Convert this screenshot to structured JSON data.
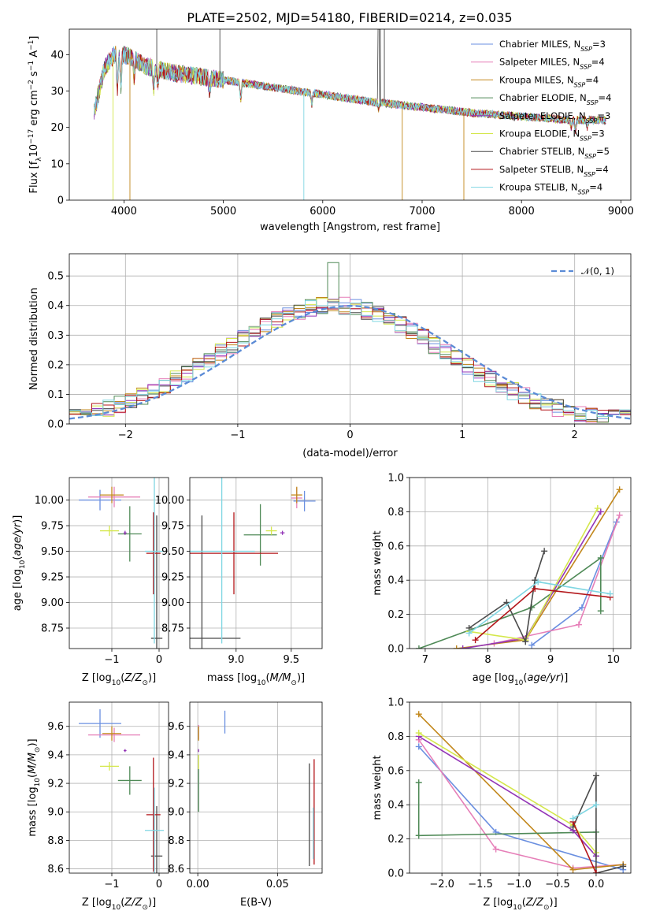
{
  "figure_title": "PLATE=2502, MJD=54180, FIBERID=0214, z=0.035",
  "colors": {
    "Chabrier MILES": "#6a8fe0",
    "Salpeter MILES": "#e67fb8",
    "Kroupa MILES": "#c2871b",
    "Chabrier ELODIE": "#4f8a57",
    "Salpeter ELODIE": "#9334b7",
    "Kroupa ELODIE": "#d4e74b",
    "Chabrier STELIB": "#4a4a4a",
    "Salpeter STELIB": "#b3161a",
    "Kroupa STELIB": "#7fd6e2"
  },
  "chart_data": [
    {
      "id": "spectrum",
      "type": "line",
      "xlabel": "wavelength [Angstrom, rest frame]",
      "ylabel": "Flux [f_λ 10^-17 erg cm^-2 s^-1 A^-1]",
      "xlim": [
        3450,
        9100
      ],
      "ylim": [
        0,
        47
      ],
      "xticks": [
        4000,
        5000,
        6000,
        7000,
        8000,
        9000
      ],
      "yticks": [
        0,
        10,
        20,
        30,
        40
      ],
      "legend_position": "top-right",
      "legend": [
        {
          "name": "Chabrier MILES",
          "nssp": "3"
        },
        {
          "name": "Salpeter MILES",
          "nssp": "4"
        },
        {
          "name": "Kroupa MILES",
          "nssp": "4"
        },
        {
          "name": "Chabrier ELODIE",
          "nssp": "4"
        },
        {
          "name": "Salpeter ELODIE",
          "nssp": "3"
        },
        {
          "name": "Kroupa ELODIE",
          "nssp": "3"
        },
        {
          "name": "Chabrier STELIB",
          "nssp": "5"
        },
        {
          "name": "Salpeter STELIB",
          "nssp": "4"
        },
        {
          "name": "Kroupa STELIB",
          "nssp": "4"
        }
      ],
      "continuum": {
        "x": [
          3700,
          3800,
          3900,
          4000,
          4100,
          4200,
          4500,
          5000,
          5500,
          6000,
          6500,
          7000,
          7500,
          8000,
          8500,
          8850
        ],
        "y": [
          24,
          36,
          40,
          40,
          39,
          37,
          35,
          33,
          31,
          29,
          27,
          25.5,
          24,
          23,
          22,
          22
        ]
      }
    },
    {
      "id": "residuals",
      "type": "histogram",
      "xlabel": "(data-model)/error",
      "ylabel": "Normed distribution",
      "xlim": [
        -2.5,
        2.5
      ],
      "ylim": [
        0,
        0.575
      ],
      "xticks": [
        -2,
        -1,
        0,
        1,
        2
      ],
      "yticks": [
        0.0,
        0.1,
        0.2,
        0.3,
        0.4,
        0.5
      ],
      "legend": "𝒩(0, 1)",
      "legend_position": "top-right",
      "bin_width": 0.1
    },
    {
      "id": "age_vs_Z",
      "type": "errorbar",
      "xlabel": "Z [log10(Z/Z⊙)]",
      "ylabel": "age [log10(age/yr)]",
      "xlim": [
        -1.9,
        0.2
      ],
      "ylim": [
        8.55,
        10.22
      ],
      "xticks": [
        -1,
        0
      ],
      "yticks": [
        8.75,
        9.0,
        9.25,
        9.5,
        9.75,
        10.0
      ],
      "points": [
        {
          "series": "Chabrier MILES",
          "x": -1.25,
          "y": 10.0,
          "xerr": 0.45,
          "yerr": 0.1
        },
        {
          "series": "Salpeter MILES",
          "x": -0.95,
          "y": 10.03,
          "xerr": 0.55,
          "yerr": 0.1
        },
        {
          "series": "Kroupa MILES",
          "x": -1.0,
          "y": 10.05,
          "xerr": 0.25,
          "yerr": 0.08
        },
        {
          "series": "Chabrier ELODIE",
          "x": -0.62,
          "y": 9.67,
          "xerr": 0.25,
          "yerr": 0.27
        },
        {
          "series": "Salpeter ELODIE",
          "x": -0.72,
          "y": 9.68,
          "xerr": 0.03,
          "yerr": 0.02
        },
        {
          "series": "Kroupa ELODIE",
          "x": -1.05,
          "y": 9.7,
          "xerr": 0.2,
          "yerr": 0.05
        },
        {
          "series": "Chabrier STELIB",
          "x": -0.05,
          "y": 8.65,
          "xerr": 0.12,
          "yerr": 1.2
        },
        {
          "series": "Salpeter STELIB",
          "x": -0.12,
          "y": 9.48,
          "xerr": 0.15,
          "yerr": 0.4
        },
        {
          "series": "Kroupa STELIB",
          "x": -0.1,
          "y": 9.5,
          "xerr": 0.2,
          "yerr": 0.9
        }
      ]
    },
    {
      "id": "age_vs_mass",
      "type": "errorbar",
      "xlabel": "mass [log10(M/M⊙)]",
      "ylabel": "",
      "xlim": [
        8.58,
        9.78
      ],
      "ylim": [
        8.55,
        10.22
      ],
      "xticks": [
        9.0,
        9.5
      ],
      "yticks": [
        8.75,
        9.0,
        9.25,
        9.5,
        9.75,
        10.0
      ],
      "points": [
        {
          "series": "Chabrier MILES",
          "x": 9.62,
          "y": 9.99,
          "xerr": 0.1,
          "yerr": 0.1
        },
        {
          "series": "Salpeter MILES",
          "x": 9.55,
          "y": 10.02,
          "xerr": 0.05,
          "yerr": 0.1
        },
        {
          "series": "Kroupa MILES",
          "x": 9.55,
          "y": 10.05,
          "xerr": 0.05,
          "yerr": 0.08
        },
        {
          "series": "Chabrier ELODIE",
          "x": 9.22,
          "y": 9.66,
          "xerr": 0.15,
          "yerr": 0.3
        },
        {
          "series": "Salpeter ELODIE",
          "x": 9.42,
          "y": 9.68,
          "xerr": 0.02,
          "yerr": 0.02
        },
        {
          "series": "Kroupa ELODIE",
          "x": 9.32,
          "y": 9.7,
          "xerr": 0.05,
          "yerr": 0.04
        },
        {
          "series": "Chabrier STELIB",
          "x": 8.69,
          "y": 8.65,
          "xerr": 0.35,
          "yerr": 1.2
        },
        {
          "series": "Salpeter STELIB",
          "x": 8.98,
          "y": 9.48,
          "xerr": 0.4,
          "yerr": 0.4
        },
        {
          "series": "Kroupa STELIB",
          "x": 8.87,
          "y": 9.5,
          "xerr": 0.3,
          "yerr": 0.9
        }
      ]
    },
    {
      "id": "weight_vs_age",
      "type": "line",
      "xlabel": "age [log10(age/yr)]",
      "ylabel": "mass weight",
      "xlim": [
        6.75,
        10.28
      ],
      "ylim": [
        0,
        1.0
      ],
      "xticks": [
        7,
        8,
        9,
        10
      ],
      "yticks": [
        0.0,
        0.2,
        0.4,
        0.6,
        0.8,
        1.0
      ],
      "series": [
        {
          "name": "Chabrier MILES",
          "x": [
            8.7,
            9.5,
            10.05
          ],
          "y": [
            0.02,
            0.24,
            0.74
          ]
        },
        {
          "name": "Salpeter MILES",
          "x": [
            8.1,
            9.45,
            10.1
          ],
          "y": [
            0.03,
            0.14,
            0.78
          ]
        },
        {
          "name": "Kroupa MILES",
          "x": [
            7.5,
            8.6,
            10.1
          ],
          "y": [
            0.0,
            0.05,
            0.93
          ]
        },
        {
          "name": "Chabrier ELODIE",
          "x": [
            6.9,
            8.7,
            9.8,
            9.8
          ],
          "y": [
            0.0,
            0.24,
            0.53,
            0.22
          ]
        },
        {
          "name": "Salpeter ELODIE",
          "x": [
            7.6,
            8.6,
            9.8
          ],
          "y": [
            0.0,
            0.06,
            0.8
          ]
        },
        {
          "name": "Kroupa ELODIE",
          "x": [
            7.7,
            8.6,
            9.75
          ],
          "y": [
            0.1,
            0.05,
            0.82
          ]
        },
        {
          "name": "Chabrier STELIB",
          "x": [
            7.7,
            8.3,
            8.6,
            8.75,
            8.9
          ],
          "y": [
            0.12,
            0.27,
            0.04,
            0.4,
            0.57
          ]
        },
        {
          "name": "Salpeter STELIB",
          "x": [
            7.8,
            8.75,
            9.95
          ],
          "y": [
            0.05,
            0.35,
            0.3
          ]
        },
        {
          "name": "Kroupa STELIB",
          "x": [
            7.7,
            8.8,
            9.95
          ],
          "y": [
            0.09,
            0.39,
            0.32
          ]
        }
      ]
    },
    {
      "id": "mass_vs_Z",
      "type": "errorbar",
      "xlabel": "Z [log10(Z/Z⊙)]",
      "ylabel": "mass [log10(M/M⊙)]",
      "xlim": [
        -1.9,
        0.2
      ],
      "ylim": [
        8.57,
        9.77
      ],
      "xticks": [
        -1,
        0
      ],
      "yticks": [
        8.6,
        8.8,
        9.0,
        9.2,
        9.4,
        9.6
      ],
      "points": [
        {
          "series": "Chabrier MILES",
          "x": -1.25,
          "y": 9.62,
          "xerr": 0.45,
          "yerr": 0.1
        },
        {
          "series": "Salpeter MILES",
          "x": -0.95,
          "y": 9.54,
          "xerr": 0.55,
          "yerr": 0.05
        },
        {
          "series": "Kroupa MILES",
          "x": -1.0,
          "y": 9.55,
          "xerr": 0.2,
          "yerr": 0.05
        },
        {
          "series": "Chabrier ELODIE",
          "x": -0.62,
          "y": 9.22,
          "xerr": 0.25,
          "yerr": 0.1
        },
        {
          "series": "Salpeter ELODIE",
          "x": -0.72,
          "y": 9.43,
          "xerr": 0.03,
          "yerr": 0.01
        },
        {
          "series": "Kroupa ELODIE",
          "x": -1.05,
          "y": 9.32,
          "xerr": 0.2,
          "yerr": 0.03
        },
        {
          "series": "Chabrier STELIB",
          "x": -0.05,
          "y": 8.69,
          "xerr": 0.12,
          "yerr": 0.35
        },
        {
          "series": "Salpeter STELIB",
          "x": -0.12,
          "y": 8.98,
          "xerr": 0.15,
          "yerr": 0.4
        },
        {
          "series": "Kroupa STELIB",
          "x": -0.1,
          "y": 8.87,
          "xerr": 0.2,
          "yerr": 0.3
        }
      ]
    },
    {
      "id": "mass_vs_ebv",
      "type": "errorbar",
      "xlabel": "E(B-V)",
      "ylabel": "",
      "xlim": [
        -0.005,
        0.078
      ],
      "ylim": [
        8.57,
        9.77
      ],
      "xticks": [
        0.0,
        0.05
      ],
      "xticklabels": [
        "0.00",
        "0.05"
      ],
      "yticks": [
        8.6,
        8.8,
        9.0,
        9.2,
        9.4,
        9.6
      ],
      "points": [
        {
          "series": "Chabrier MILES",
          "x": 0.017,
          "y": 9.63,
          "xerr": 0.0,
          "yerr": 0.08
        },
        {
          "series": "Salpeter MILES",
          "x": 0.0005,
          "y": 9.56,
          "xerr": 0.0,
          "yerr": 0.05
        },
        {
          "series": "Kroupa MILES",
          "x": 0.0005,
          "y": 9.55,
          "xerr": 0.0,
          "yerr": 0.05
        },
        {
          "series": "Chabrier ELODIE",
          "x": 0.0005,
          "y": 9.15,
          "xerr": 0.0,
          "yerr": 0.15
        },
        {
          "series": "Salpeter ELODIE",
          "x": 0.0005,
          "y": 9.43,
          "xerr": 0.0,
          "yerr": 0.01
        },
        {
          "series": "Kroupa ELODIE",
          "x": 0.0005,
          "y": 9.35,
          "xerr": 0.0,
          "yerr": 0.05
        },
        {
          "series": "Chabrier STELIB",
          "x": 0.07,
          "y": 8.98,
          "xerr": 0.0,
          "yerr": 0.36
        },
        {
          "series": "Salpeter STELIB",
          "x": 0.073,
          "y": 9.0,
          "xerr": 0.0,
          "yerr": 0.37
        },
        {
          "series": "Kroupa STELIB",
          "x": 0.0725,
          "y": 8.85,
          "xerr": 0.0,
          "yerr": 0.18
        }
      ]
    },
    {
      "id": "weight_vs_Z",
      "type": "line",
      "xlabel": "Z [log10(Z/Z⊙)]",
      "ylabel": "mass weight",
      "xlim": [
        -2.42,
        0.45
      ],
      "ylim": [
        0,
        1.0
      ],
      "xticks": [
        -2.0,
        -1.5,
        -1.0,
        -0.5,
        0.0
      ],
      "yticks": [
        0.0,
        0.2,
        0.4,
        0.6,
        0.8,
        1.0
      ],
      "series": [
        {
          "name": "Chabrier MILES",
          "x": [
            -2.3,
            -1.3,
            0.35
          ],
          "y": [
            0.74,
            0.24,
            0.02
          ]
        },
        {
          "name": "Salpeter MILES",
          "x": [
            -2.3,
            -1.3,
            -0.3,
            0.35
          ],
          "y": [
            0.78,
            0.14,
            0.03,
            0.05
          ]
        },
        {
          "name": "Kroupa MILES",
          "x": [
            -2.3,
            -0.3,
            0.35
          ],
          "y": [
            0.93,
            0.02,
            0.05
          ]
        },
        {
          "name": "Chabrier ELODIE",
          "x": [
            -2.3,
            -2.3,
            0.0,
            0.0
          ],
          "y": [
            0.53,
            0.22,
            0.24,
            0.1
          ]
        },
        {
          "name": "Salpeter ELODIE",
          "x": [
            -2.3,
            -0.3,
            0.0
          ],
          "y": [
            0.8,
            0.25,
            0.1
          ]
        },
        {
          "name": "Kroupa ELODIE",
          "x": [
            -2.3,
            -0.3,
            0.0
          ],
          "y": [
            0.82,
            0.28,
            0.12
          ]
        },
        {
          "name": "Chabrier STELIB",
          "x": [
            -0.3,
            0.0,
            0.0,
            0.35
          ],
          "y": [
            0.27,
            0.57,
            0.0,
            0.04
          ]
        },
        {
          "name": "Salpeter STELIB",
          "x": [
            -0.3,
            0.0
          ],
          "y": [
            0.3,
            0.0
          ]
        },
        {
          "name": "Kroupa STELIB",
          "x": [
            -0.3,
            0.0
          ],
          "y": [
            0.32,
            0.4
          ]
        }
      ]
    }
  ]
}
